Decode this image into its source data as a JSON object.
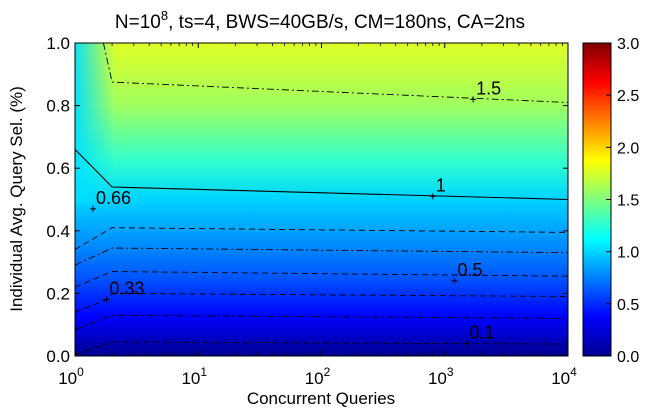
{
  "chart_data": {
    "type": "heatmap",
    "title_base": "N=10",
    "title_exp": "8",
    "title_rest": ", ts=4, BWS=40GB/s, CM=180ns, CA=2ns",
    "xlabel": "Concurrent Queries",
    "ylabel": "Individual Avg. Query Sel. (%)",
    "x_scale": "log",
    "x_range": [
      1,
      10000
    ],
    "y_range": [
      0,
      1.0
    ],
    "x_ticks": [
      {
        "value": 1,
        "base": "10",
        "exp": "0"
      },
      {
        "value": 10,
        "base": "10",
        "exp": "1"
      },
      {
        "value": 100,
        "base": "10",
        "exp": "2"
      },
      {
        "value": 1000,
        "base": "10",
        "exp": "3"
      },
      {
        "value": 10000,
        "base": "10",
        "exp": "4"
      }
    ],
    "y_ticks": [
      {
        "value": 0.0,
        "label": "0.0"
      },
      {
        "value": 0.2,
        "label": "0.2"
      },
      {
        "value": 0.4,
        "label": "0.4"
      },
      {
        "value": 0.6,
        "label": "0.6"
      },
      {
        "value": 0.8,
        "label": "0.8"
      },
      {
        "value": 1.0,
        "label": "1.0"
      }
    ],
    "colorbar": {
      "range": [
        0,
        3.0
      ],
      "colormap": "jet",
      "ticks": [
        {
          "value": 0.0,
          "label": "0.0"
        },
        {
          "value": 0.5,
          "label": "0.5"
        },
        {
          "value": 1.0,
          "label": "1.0"
        },
        {
          "value": 1.5,
          "label": "1.5"
        },
        {
          "value": 2.0,
          "label": "2.0"
        },
        {
          "value": 2.5,
          "label": "2.5"
        },
        {
          "value": 3.0,
          "label": "3.0"
        }
      ]
    },
    "contours": [
      {
        "level": 0.1,
        "style": "dashed",
        "labeled": true,
        "label": "0.1",
        "points": [
          [
            1,
            0.005
          ],
          [
            2,
            0.045
          ],
          [
            10000,
            0.038
          ]
        ],
        "label_at": [
          1500,
          0.04
        ]
      },
      {
        "level": 0.2,
        "style": "dashdot",
        "labeled": false,
        "points": [
          [
            1,
            0.085
          ],
          [
            2,
            0.13
          ],
          [
            10000,
            0.12
          ]
        ]
      },
      {
        "level": 0.33,
        "style": "dashed",
        "labeled": true,
        "label": "0.33",
        "points": [
          [
            1,
            0.14
          ],
          [
            1.8,
            0.18
          ],
          [
            2,
            0.2
          ],
          [
            10000,
            0.19
          ]
        ],
        "label_at": [
          1.8,
          0.18
        ]
      },
      {
        "level": 0.5,
        "style": "dashed",
        "labeled": true,
        "label": "0.5",
        "points": [
          [
            1,
            0.22
          ],
          [
            2,
            0.27
          ],
          [
            10000,
            0.255
          ]
        ],
        "label_at": [
          1200,
          0.24
        ]
      },
      {
        "level": 0.66,
        "style": "dashdot",
        "labeled": true,
        "label": "0.66",
        "points": [
          [
            1,
            0.29
          ],
          [
            2,
            0.345
          ],
          [
            10000,
            0.33
          ]
        ],
        "label_at": [
          1.4,
          0.47
        ]
      },
      {
        "level": 0.75,
        "style": "dashed",
        "labeled": false,
        "points": [
          [
            1,
            0.34
          ],
          [
            2,
            0.41
          ],
          [
            10000,
            0.395
          ]
        ]
      },
      {
        "level": 1.0,
        "style": "solid",
        "labeled": true,
        "label": "1",
        "points": [
          [
            1,
            0.66
          ],
          [
            2,
            0.54
          ],
          [
            10000,
            0.5
          ]
        ],
        "label_at": [
          800,
          0.51
        ]
      },
      {
        "level": 1.5,
        "style": "dashdot",
        "labeled": true,
        "label": "1.5",
        "points": [
          [
            1.7,
            1.0
          ],
          [
            2,
            0.875
          ],
          [
            10000,
            0.81
          ]
        ],
        "label_at": [
          1700,
          0.82
        ]
      }
    ],
    "grid": false
  }
}
